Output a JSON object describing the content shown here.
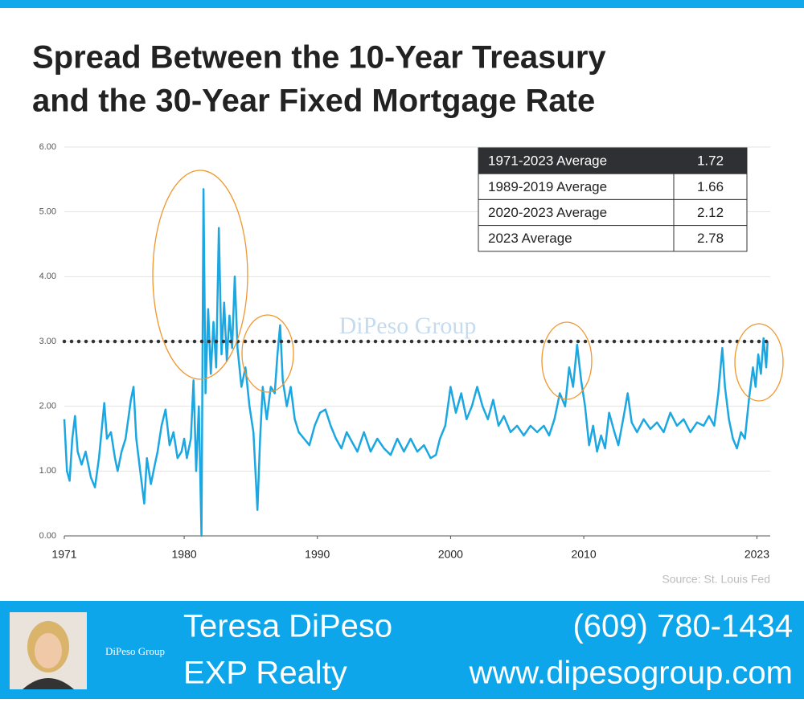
{
  "chart_data": {
    "type": "line",
    "title": [
      "Spread Between the 10-Year Treasury",
      "and the 30-Year Fixed Mortgage Rate"
    ],
    "source": "Source: St. Louis Fed",
    "watermark": "DiPeso Group",
    "color": "#1ba7e1",
    "reference_value": 3,
    "reference_color": "#333333",
    "grid": true,
    "xlim": [
      1971,
      2024
    ],
    "xticks": [
      1971,
      1980,
      1990,
      2000,
      2010,
      2023
    ],
    "ylim": [
      0,
      6
    ],
    "yticks": [
      {
        "value": 0,
        "label": "0.00"
      },
      {
        "value": 1,
        "label": "1.00"
      },
      {
        "value": 2,
        "label": "2.00"
      },
      {
        "value": 3,
        "label": "3.00"
      },
      {
        "value": 4,
        "label": "4.00"
      },
      {
        "value": 5,
        "label": "5.00"
      },
      {
        "value": 6,
        "label": "6.00"
      }
    ],
    "x": [
      1971,
      1971.2,
      1971.4,
      1971.6,
      1971.8,
      1972,
      1972.3,
      1972.6,
      1973,
      1973.3,
      1973.6,
      1974,
      1974.2,
      1974.5,
      1974.8,
      1975,
      1975.3,
      1975.6,
      1976,
      1976.2,
      1976.4,
      1976.7,
      1977,
      1977.2,
      1977.5,
      1977.8,
      1978,
      1978.3,
      1978.6,
      1978.9,
      1979.2,
      1979.5,
      1979.8,
      1980,
      1980.2,
      1980.5,
      1980.7,
      1980.9,
      1981.1,
      1981.3,
      1981.45,
      1981.6,
      1981.8,
      1982,
      1982.2,
      1982.4,
      1982.6,
      1982.8,
      1983,
      1983.2,
      1983.4,
      1983.6,
      1983.8,
      1984,
      1984.3,
      1984.6,
      1984.9,
      1985.2,
      1985.5,
      1985.7,
      1985.9,
      1986.2,
      1986.5,
      1986.8,
      1987,
      1987.2,
      1987.4,
      1987.7,
      1988,
      1988.3,
      1988.6,
      1989,
      1989.4,
      1989.8,
      1990.2,
      1990.6,
      1991,
      1991.4,
      1991.8,
      1992.2,
      1992.6,
      1993,
      1993.5,
      1994,
      1994.5,
      1995,
      1995.5,
      1996,
      1996.5,
      1997,
      1997.5,
      1998,
      1998.5,
      1998.9,
      1999.2,
      1999.6,
      2000,
      2000.4,
      2000.8,
      2001.2,
      2001.6,
      2002,
      2002.4,
      2002.8,
      2003.2,
      2003.6,
      2004,
      2004.5,
      2005,
      2005.5,
      2006,
      2006.5,
      2007,
      2007.4,
      2007.8,
      2008.2,
      2008.6,
      2008.9,
      2009.2,
      2009.5,
      2009.8,
      2010.1,
      2010.4,
      2010.7,
      2011,
      2011.3,
      2011.6,
      2011.9,
      2012.3,
      2012.6,
      2013,
      2013.3,
      2013.6,
      2014,
      2014.5,
      2015,
      2015.5,
      2016,
      2016.5,
      2017,
      2017.5,
      2018,
      2018.5,
      2019,
      2019.4,
      2019.8,
      2020.1,
      2020.4,
      2020.6,
      2020.9,
      2021.2,
      2021.5,
      2021.8,
      2022.1,
      2022.4,
      2022.7,
      2022.9,
      2023.1,
      2023.3,
      2023.5,
      2023.7,
      2023.8
    ],
    "values": [
      1.8,
      1.0,
      0.85,
      1.5,
      1.85,
      1.3,
      1.1,
      1.3,
      0.9,
      0.75,
      1.2,
      2.05,
      1.5,
      1.6,
      1.2,
      1.0,
      1.3,
      1.5,
      2.1,
      2.3,
      1.5,
      1.0,
      0.5,
      1.2,
      0.8,
      1.1,
      1.3,
      1.7,
      1.95,
      1.4,
      1.6,
      1.2,
      1.3,
      1.5,
      1.2,
      1.5,
      2.4,
      1.0,
      2.0,
      0.0,
      5.35,
      2.2,
      3.5,
      2.5,
      3.3,
      2.6,
      4.75,
      2.8,
      3.6,
      2.7,
      3.4,
      2.9,
      4.0,
      2.9,
      2.3,
      2.6,
      2.0,
      1.6,
      0.4,
      1.5,
      2.3,
      1.8,
      2.3,
      2.2,
      2.8,
      3.25,
      2.4,
      2.0,
      2.3,
      1.8,
      1.6,
      1.5,
      1.4,
      1.7,
      1.9,
      1.95,
      1.7,
      1.5,
      1.35,
      1.6,
      1.45,
      1.3,
      1.6,
      1.3,
      1.5,
      1.35,
      1.25,
      1.5,
      1.3,
      1.5,
      1.3,
      1.4,
      1.2,
      1.25,
      1.5,
      1.7,
      2.3,
      1.9,
      2.2,
      1.8,
      2.0,
      2.3,
      2.0,
      1.8,
      2.1,
      1.7,
      1.85,
      1.6,
      1.7,
      1.55,
      1.7,
      1.6,
      1.7,
      1.55,
      1.8,
      2.2,
      2.0,
      2.6,
      2.3,
      2.95,
      2.4,
      2.0,
      1.4,
      1.7,
      1.3,
      1.55,
      1.35,
      1.9,
      1.6,
      1.4,
      1.85,
      2.2,
      1.75,
      1.6,
      1.8,
      1.65,
      1.75,
      1.6,
      1.9,
      1.7,
      1.8,
      1.6,
      1.75,
      1.7,
      1.85,
      1.7,
      2.2,
      2.9,
      2.3,
      1.8,
      1.5,
      1.35,
      1.6,
      1.5,
      2.1,
      2.6,
      2.3,
      2.8,
      2.5,
      3.05,
      2.6,
      3.0
    ]
  },
  "table": {
    "rows": [
      [
        "1971-2023 Average",
        1.72
      ],
      [
        "1989-2019 Average",
        1.66
      ],
      [
        "2020-2023 Average",
        2.12
      ],
      [
        "2023 Average",
        2.78
      ]
    ]
  },
  "footer": {
    "name": "Teresa DiPeso",
    "company": "EXP Realty",
    "phone": "(609) 780-1434",
    "website": "www.dipesogroup.com"
  }
}
